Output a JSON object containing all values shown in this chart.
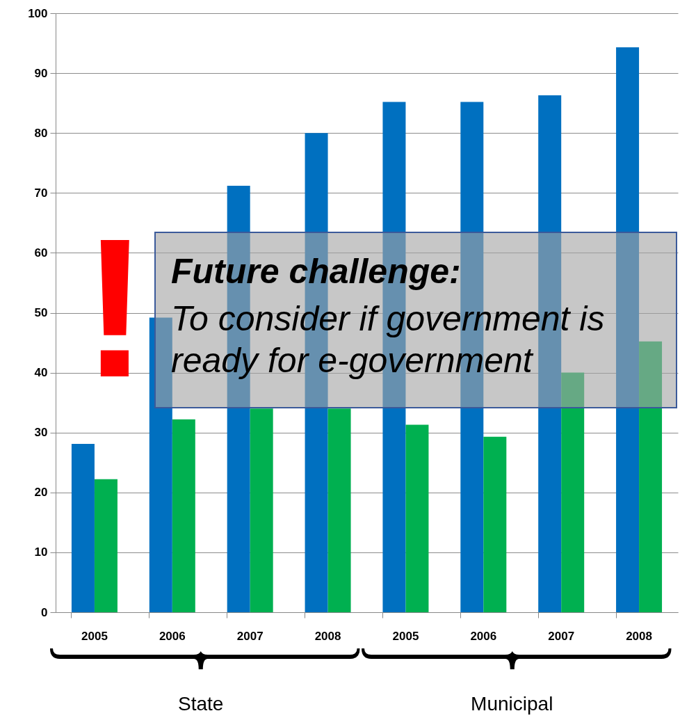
{
  "chart_data": {
    "type": "bar",
    "categories": [
      "2005",
      "2006",
      "2007",
      "2008",
      "2005",
      "2006",
      "2007",
      "2008"
    ],
    "series": [
      {
        "color": "#0070c0",
        "values": [
          28.1,
          49.2,
          71.2,
          80,
          85.2,
          85.2,
          86.3,
          94.3
        ]
      },
      {
        "color": "#00b050",
        "values": [
          22.2,
          32.2,
          34,
          34,
          31.3,
          29.3,
          40,
          45.2
        ]
      }
    ],
    "ylim": [
      0,
      100
    ],
    "yticks": [
      0,
      10,
      20,
      30,
      40,
      50,
      60,
      70,
      80,
      90,
      100
    ],
    "grid": "y",
    "legend": false,
    "annotations": [
      "!",
      "Future challenge:",
      "To consider if government is ready for e-government",
      "State",
      "Municipal"
    ]
  }
}
